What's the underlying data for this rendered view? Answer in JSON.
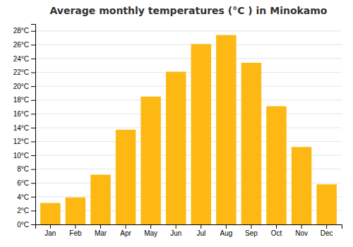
{
  "chart_data": {
    "type": "bar",
    "title": "Average monthly temperatures (°C ) in Minokamo",
    "categories": [
      "Jan",
      "Feb",
      "Mar",
      "Apr",
      "May",
      "Jun",
      "Jul",
      "Aug",
      "Sep",
      "Oct",
      "Nov",
      "Dec"
    ],
    "values": [
      3.1,
      3.9,
      7.2,
      13.7,
      18.5,
      22.1,
      26.1,
      27.4,
      23.4,
      17.1,
      11.2,
      5.8
    ],
    "color": "#FDB813",
    "ylim": [
      0,
      29
    ],
    "yticks": [
      {
        "value": 0,
        "label": "0°C"
      },
      {
        "value": 2,
        "label": "2°C"
      },
      {
        "value": 4,
        "label": "4°C"
      },
      {
        "value": 6,
        "label": "6°C"
      },
      {
        "value": 8,
        "label": "8°C"
      },
      {
        "value": 10,
        "label": "10°C"
      },
      {
        "value": 12,
        "label": "12°C"
      },
      {
        "value": 14,
        "label": "14°C"
      },
      {
        "value": 16,
        "label": "16°C"
      },
      {
        "value": 18,
        "label": "18°C"
      },
      {
        "value": 20,
        "label": "20°C"
      },
      {
        "value": 22,
        "label": "22°C"
      },
      {
        "value": 24,
        "label": "24°C"
      },
      {
        "value": 26,
        "label": "26°C"
      },
      {
        "value": 28,
        "label": "28°C"
      }
    ],
    "grid": true
  }
}
